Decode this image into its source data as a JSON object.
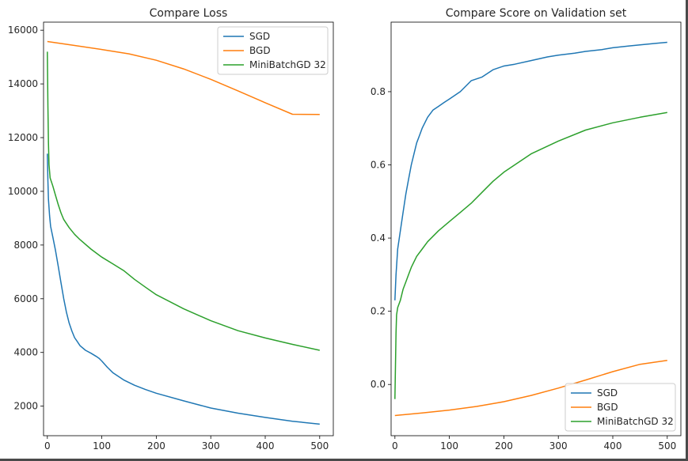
{
  "chart_data": [
    {
      "type": "line",
      "title": "Compare Loss",
      "xlabel": "",
      "ylabel": "",
      "xlim": [
        -7,
        525
      ],
      "ylim": [
        900,
        16300
      ],
      "xticks": [
        0,
        100,
        200,
        300,
        400,
        500
      ],
      "yticks": [
        2000,
        4000,
        6000,
        8000,
        10000,
        12000,
        14000,
        16000
      ],
      "legend_position": "top-right",
      "series": [
        {
          "name": "SGD",
          "color": "#1f77b4",
          "points": [
            [
              0,
              11400
            ],
            [
              1,
              10400
            ],
            [
              2,
              9700
            ],
            [
              4,
              9100
            ],
            [
              6,
              8700
            ],
            [
              10,
              8300
            ],
            [
              15,
              7800
            ],
            [
              20,
              7200
            ],
            [
              25,
              6600
            ],
            [
              30,
              6000
            ],
            [
              35,
              5500
            ],
            [
              40,
              5100
            ],
            [
              45,
              4800
            ],
            [
              50,
              4550
            ],
            [
              55,
              4400
            ],
            [
              60,
              4250
            ],
            [
              70,
              4080
            ],
            [
              80,
              3970
            ],
            [
              90,
              3850
            ],
            [
              95,
              3780
            ],
            [
              100,
              3680
            ],
            [
              110,
              3450
            ],
            [
              120,
              3250
            ],
            [
              140,
              2980
            ],
            [
              160,
              2780
            ],
            [
              180,
              2620
            ],
            [
              200,
              2480
            ],
            [
              250,
              2200
            ],
            [
              300,
              1930
            ],
            [
              350,
              1740
            ],
            [
              400,
              1580
            ],
            [
              450,
              1440
            ],
            [
              500,
              1330
            ]
          ]
        },
        {
          "name": "BGD",
          "color": "#ff7f0e",
          "points": [
            [
              0,
              15580
            ],
            [
              50,
              15430
            ],
            [
              100,
              15280
            ],
            [
              150,
              15120
            ],
            [
              200,
              14880
            ],
            [
              250,
              14560
            ],
            [
              300,
              14170
            ],
            [
              350,
              13740
            ],
            [
              400,
              13300
            ],
            [
              450,
              12870
            ],
            [
              500,
              12860
            ]
          ]
        },
        {
          "name": "MiniBatchGD 32",
          "color": "#2ca02c",
          "points": [
            [
              0,
              15200
            ],
            [
              1,
              13200
            ],
            [
              2,
              11800
            ],
            [
              3,
              11000
            ],
            [
              5,
              10500
            ],
            [
              10,
              10200
            ],
            [
              15,
              9850
            ],
            [
              20,
              9500
            ],
            [
              25,
              9200
            ],
            [
              30,
              8950
            ],
            [
              40,
              8650
            ],
            [
              50,
              8400
            ],
            [
              60,
              8200
            ],
            [
              80,
              7850
            ],
            [
              100,
              7550
            ],
            [
              120,
              7300
            ],
            [
              140,
              7050
            ],
            [
              160,
              6720
            ],
            [
              180,
              6430
            ],
            [
              200,
              6150
            ],
            [
              250,
              5630
            ],
            [
              300,
              5180
            ],
            [
              350,
              4810
            ],
            [
              400,
              4540
            ],
            [
              450,
              4300
            ],
            [
              500,
              4080
            ]
          ]
        }
      ]
    },
    {
      "type": "line",
      "title": "Compare Score on Validation set",
      "xlabel": "",
      "ylabel": "",
      "xlim": [
        -7,
        525
      ],
      "ylim": [
        -0.14,
        0.99
      ],
      "xticks": [
        0,
        100,
        200,
        300,
        400,
        500
      ],
      "yticks": [
        0.0,
        0.2,
        0.4,
        0.6,
        0.8
      ],
      "legend_position": "bottom-right",
      "series": [
        {
          "name": "SGD",
          "color": "#1f77b4",
          "points": [
            [
              0,
              0.23
            ],
            [
              2,
              0.3
            ],
            [
              5,
              0.37
            ],
            [
              10,
              0.42
            ],
            [
              15,
              0.47
            ],
            [
              20,
              0.52
            ],
            [
              25,
              0.56
            ],
            [
              30,
              0.6
            ],
            [
              35,
              0.63
            ],
            [
              40,
              0.66
            ],
            [
              45,
              0.68
            ],
            [
              50,
              0.7
            ],
            [
              60,
              0.73
            ],
            [
              70,
              0.75
            ],
            [
              80,
              0.76
            ],
            [
              90,
              0.77
            ],
            [
              100,
              0.78
            ],
            [
              120,
              0.8
            ],
            [
              140,
              0.83
            ],
            [
              160,
              0.84
            ],
            [
              180,
              0.86
            ],
            [
              200,
              0.87
            ],
            [
              220,
              0.875
            ],
            [
              250,
              0.885
            ],
            [
              280,
              0.895
            ],
            [
              300,
              0.9
            ],
            [
              330,
              0.905
            ],
            [
              350,
              0.91
            ],
            [
              380,
              0.915
            ],
            [
              400,
              0.92
            ],
            [
              430,
              0.925
            ],
            [
              450,
              0.928
            ],
            [
              480,
              0.932
            ],
            [
              500,
              0.935
            ]
          ]
        },
        {
          "name": "BGD",
          "color": "#ff7f0e",
          "points": [
            [
              0,
              -0.085
            ],
            [
              50,
              -0.078
            ],
            [
              100,
              -0.07
            ],
            [
              150,
              -0.06
            ],
            [
              200,
              -0.047
            ],
            [
              250,
              -0.03
            ],
            [
              300,
              -0.01
            ],
            [
              350,
              0.012
            ],
            [
              400,
              0.035
            ],
            [
              450,
              0.055
            ],
            [
              500,
              0.066
            ]
          ]
        },
        {
          "name": "MiniBatchGD 32",
          "color": "#2ca02c",
          "points": [
            [
              0,
              -0.04
            ],
            [
              1,
              0.05
            ],
            [
              2,
              0.14
            ],
            [
              3,
              0.19
            ],
            [
              5,
              0.21
            ],
            [
              10,
              0.23
            ],
            [
              15,
              0.26
            ],
            [
              20,
              0.28
            ],
            [
              25,
              0.3
            ],
            [
              30,
              0.32
            ],
            [
              40,
              0.35
            ],
            [
              50,
              0.37
            ],
            [
              60,
              0.39
            ],
            [
              80,
              0.42
            ],
            [
              100,
              0.445
            ],
            [
              120,
              0.47
            ],
            [
              140,
              0.495
            ],
            [
              160,
              0.525
            ],
            [
              180,
              0.555
            ],
            [
              200,
              0.58
            ],
            [
              250,
              0.63
            ],
            [
              300,
              0.665
            ],
            [
              350,
              0.695
            ],
            [
              400,
              0.715
            ],
            [
              450,
              0.73
            ],
            [
              500,
              0.743
            ]
          ]
        }
      ]
    }
  ]
}
